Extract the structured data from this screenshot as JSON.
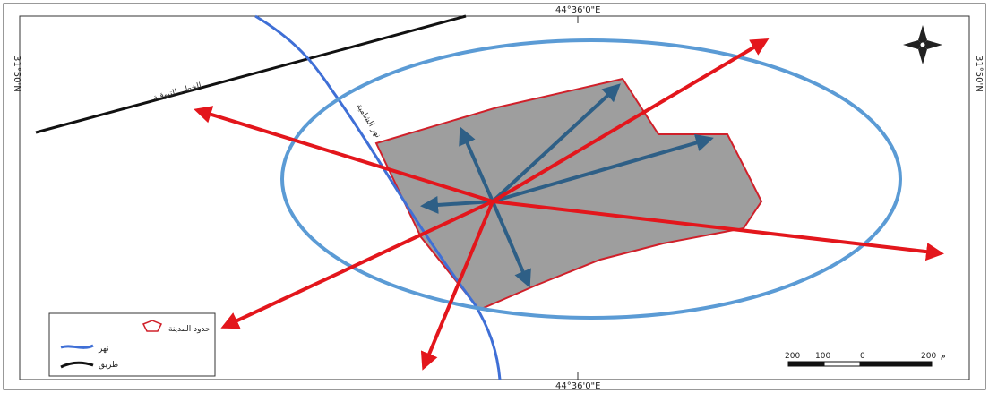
{
  "coordinates": {
    "top_longitude": "44°36'0\"E",
    "bottom_longitude": "44°36'0\"E",
    "left_latitude": "31°50'N",
    "right_latitude": "31°50'N"
  },
  "labels": {
    "road": "الخط ـ التيوقية",
    "river": "نهر الشامية"
  },
  "legend": {
    "items": [
      {
        "label": "حدود المدينة",
        "symbol": "city-boundary"
      },
      {
        "label": "نهر",
        "symbol": "river"
      },
      {
        "label": "طريق",
        "symbol": "road"
      }
    ]
  },
  "scale_bar": {
    "ticks": [
      "200",
      "100",
      "0",
      "200"
    ],
    "unit": "م"
  },
  "colors": {
    "city_fill": "#9e9e9e",
    "city_outline": "#d0202a",
    "river": "#3f6fd6",
    "road": "#111111",
    "ellipse": "#5b9bd5",
    "expansion_arrows": "#e3161c",
    "internal_arrows": "#2e5f86"
  }
}
